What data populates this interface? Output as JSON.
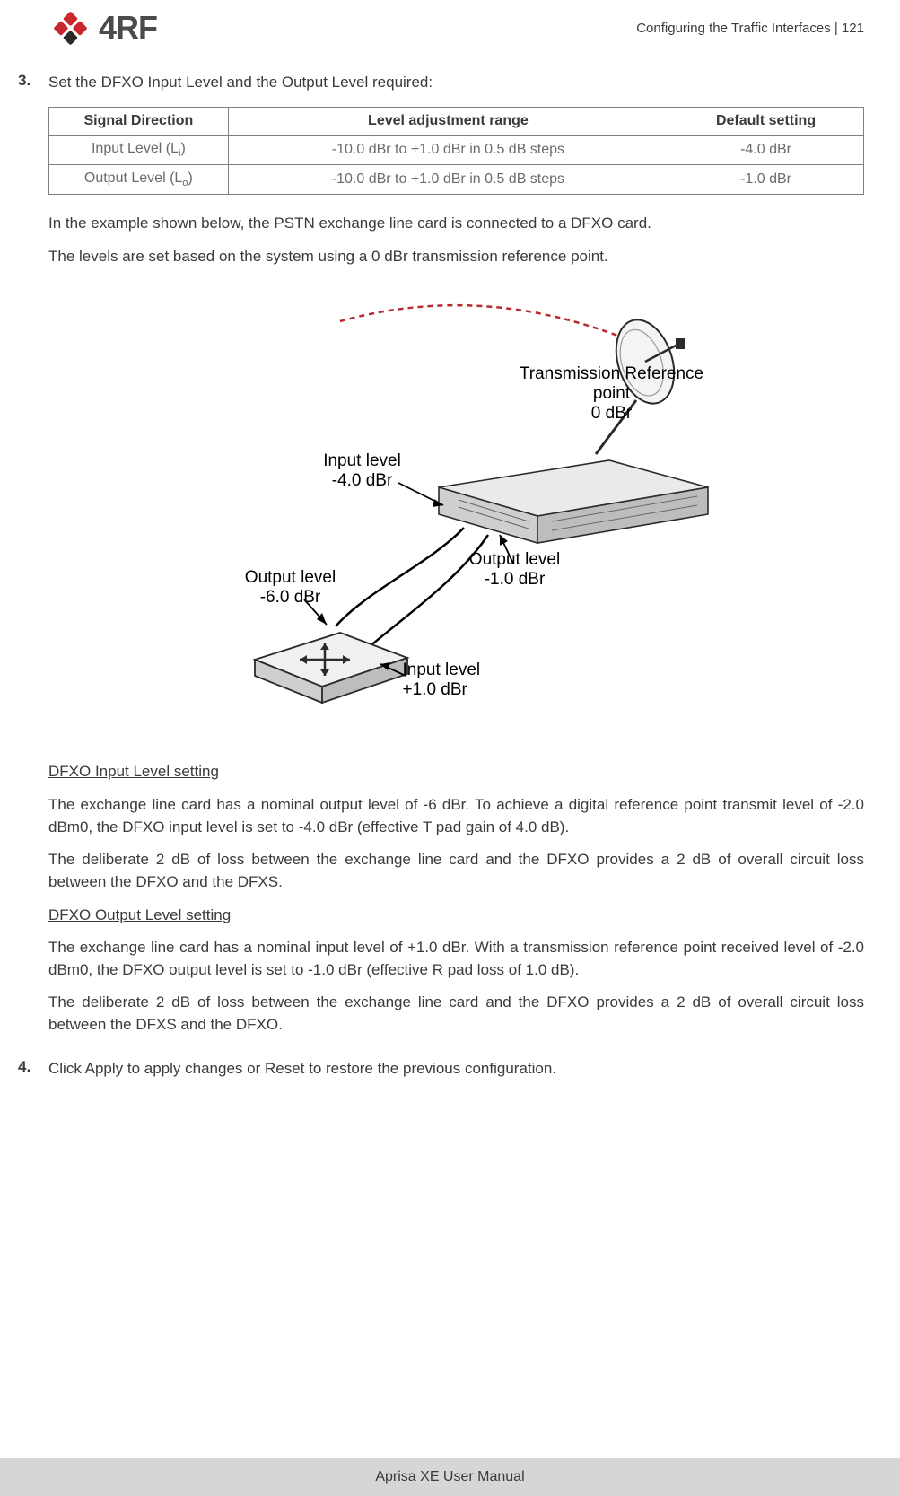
{
  "logo": {
    "text": "4RF",
    "dot_colors": [
      "#c8282d",
      "#c8282d",
      "#c8282d",
      "#2b2b2b"
    ]
  },
  "header": {
    "section": "Configuring the Traffic Interfaces",
    "sep": "  |  ",
    "page": "121"
  },
  "step3": {
    "num": "3.",
    "lead": "Set the DFXO Input Level and the Output Level required:",
    "table": {
      "headers": [
        "Signal Direction",
        "Level adjustment range",
        "Default setting"
      ],
      "rows": [
        {
          "dir_pre": "Input Level (L",
          "dir_sub": "i",
          "dir_post": ")",
          "range": "-10.0 dBr to +1.0 dBr in 0.5 dB steps",
          "def": "-4.0 dBr"
        },
        {
          "dir_pre": "Output Level (L",
          "dir_sub": "o",
          "dir_post": ")",
          "range": "-10.0 dBr to +1.0 dBr in 0.5 dB steps",
          "def": "-1.0 dBr"
        }
      ]
    },
    "p1": "In the example shown below, the PSTN exchange line card is connected to a DFXO card.",
    "p2": "The levels are set based on the system using a 0 dBr transmission reference point.",
    "diagram": {
      "trans_ref": "Transmission Reference point\n0 dBr",
      "in_neg4": "Input level\n-4.0 dBr",
      "out_neg1": "Output level\n-1.0 dBr",
      "out_neg6": "Output level\n-6.0 dBr",
      "in_pos1": "Input level\n+1.0 dBr"
    },
    "h_input": "DFXO Input Level setting",
    "p3": "The exchange line card has a nominal output level of -6 dBr. To achieve a digital reference point transmit level of -2.0 dBm0, the DFXO input level is set to -4.0 dBr (effective T pad gain of 4.0 dB).",
    "p4": "The deliberate 2 dB of loss between the exchange line card and the DFXO provides a 2 dB of overall circuit loss between the DFXO and the DFXS.",
    "h_output": "DFXO Output Level setting",
    "p5": "The exchange line card has a nominal input level of +1.0 dBr. With a transmission reference point received level of -2.0 dBm0, the DFXO output level is set to -1.0 dBr (effective R pad loss of 1.0 dB).",
    "p6": "The deliberate 2 dB of loss between the exchange line card and the DFXO provides a 2 dB of overall circuit loss between the DFXS and the DFXO."
  },
  "step4": {
    "num": "4.",
    "text": "Click Apply to apply changes or Reset to restore the previous configuration."
  },
  "footer": "Aprisa XE User Manual",
  "colors": {
    "device_fill": "#e8e8e8",
    "device_stroke": "#2b2b2b",
    "dashed": "#b82a2e",
    "line": "#000000"
  }
}
